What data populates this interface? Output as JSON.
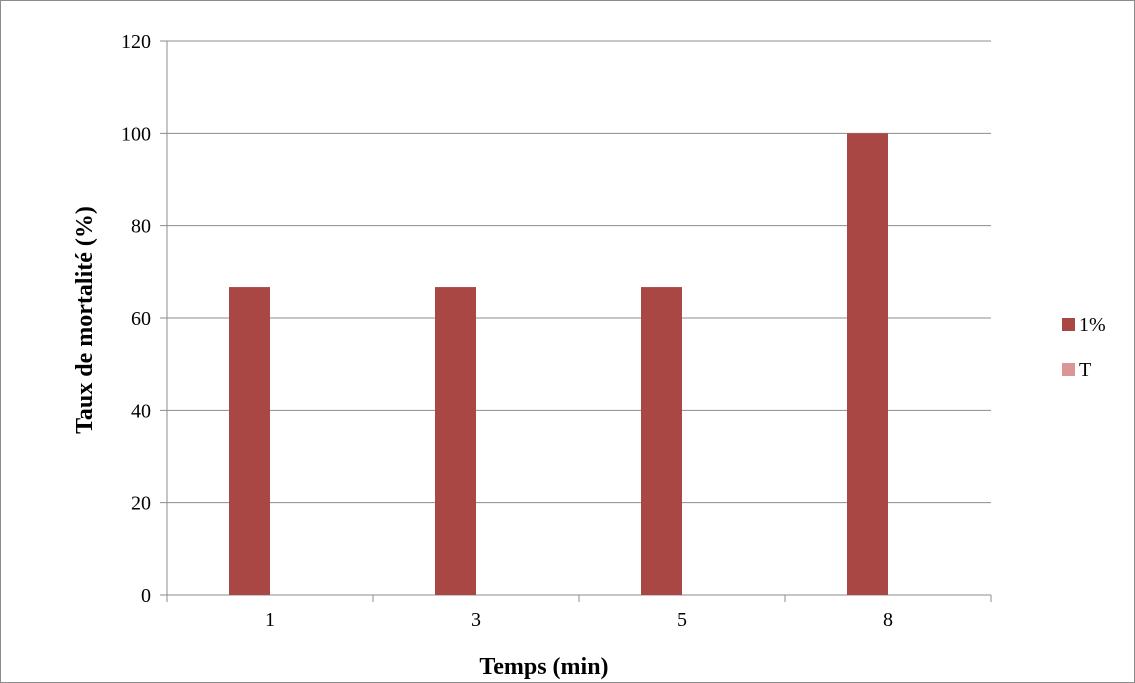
{
  "chart_data": {
    "type": "bar",
    "categories": [
      "1",
      "3",
      "5",
      "8"
    ],
    "series": [
      {
        "name": "1%",
        "values": [
          66.7,
          66.7,
          66.7,
          100
        ],
        "color": "#A84743"
      },
      {
        "name": "T",
        "values": [
          0,
          0,
          0,
          0
        ],
        "color": "#D99694"
      }
    ],
    "xlabel": "Temps (min)",
    "ylabel": "Taux de mortalité (%)",
    "ylim": [
      0,
      120
    ],
    "yticks": [
      0,
      20,
      40,
      60,
      80,
      100,
      120
    ],
    "grid": true,
    "legend_position": "right",
    "gridline_color": "#8c8c8c"
  }
}
